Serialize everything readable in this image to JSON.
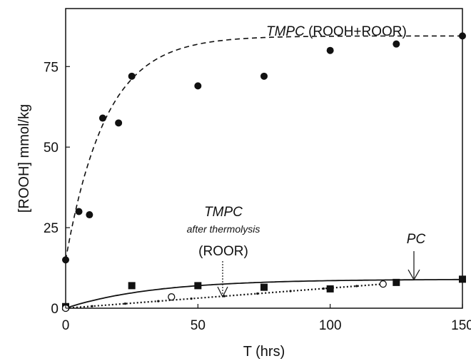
{
  "chart_data": {
    "type": "scatter",
    "title": "",
    "xlabel": "T (hrs)",
    "ylabel": "[ROOH] mmol/kg",
    "xlim": [
      0,
      150
    ],
    "ylim": [
      0,
      93
    ],
    "xticks": [
      0,
      50,
      100,
      150
    ],
    "yticks": [
      0,
      25,
      50,
      75
    ],
    "grid": false,
    "legend": "none",
    "series": [
      {
        "name": "TMPC (ROOH+ROOR)",
        "marker": "filled-circle",
        "x": [
          0,
          5,
          9,
          14,
          20,
          25,
          50,
          75,
          100,
          125,
          150
        ],
        "y": [
          15,
          30,
          29,
          59,
          57.5,
          72,
          69,
          72,
          80,
          82,
          84.5
        ],
        "fit": {
          "style": "dashed",
          "model": "exponential-rise",
          "y0": 15,
          "ymax": 84.5,
          "k": 0.066
        }
      },
      {
        "name": "PC",
        "marker": "filled-square",
        "x": [
          0,
          25,
          50,
          75,
          100,
          125,
          150
        ],
        "y": [
          0.5,
          7,
          7,
          6.5,
          6,
          8,
          9
        ],
        "fit": {
          "style": "solid",
          "model": "exponential-rise",
          "y0": 0,
          "ymax": 9,
          "k": 0.03
        }
      },
      {
        "name": "TMPC after thermolysis (ROOR)",
        "marker": "open-circle",
        "x": [
          0,
          40,
          120
        ],
        "y": [
          0,
          3.5,
          7.5
        ],
        "fit": {
          "style": "dotted",
          "model": "linear",
          "y0": 0,
          "slope": 0.0625,
          "xmax": 120
        }
      }
    ],
    "annotations": {
      "tmpc_top": {
        "italic": "TMPC",
        "rest": " (ROOH+ROOR)"
      },
      "tmpc_mid_line1": "TMPC",
      "tmpc_mid_line2": "after thermolysis",
      "tmpc_mid_line3": "(ROOR)",
      "pc": "PC"
    },
    "colors": {
      "axis": "#111111",
      "marker": "#111111",
      "open_marker_fill": "#ffffff"
    }
  }
}
